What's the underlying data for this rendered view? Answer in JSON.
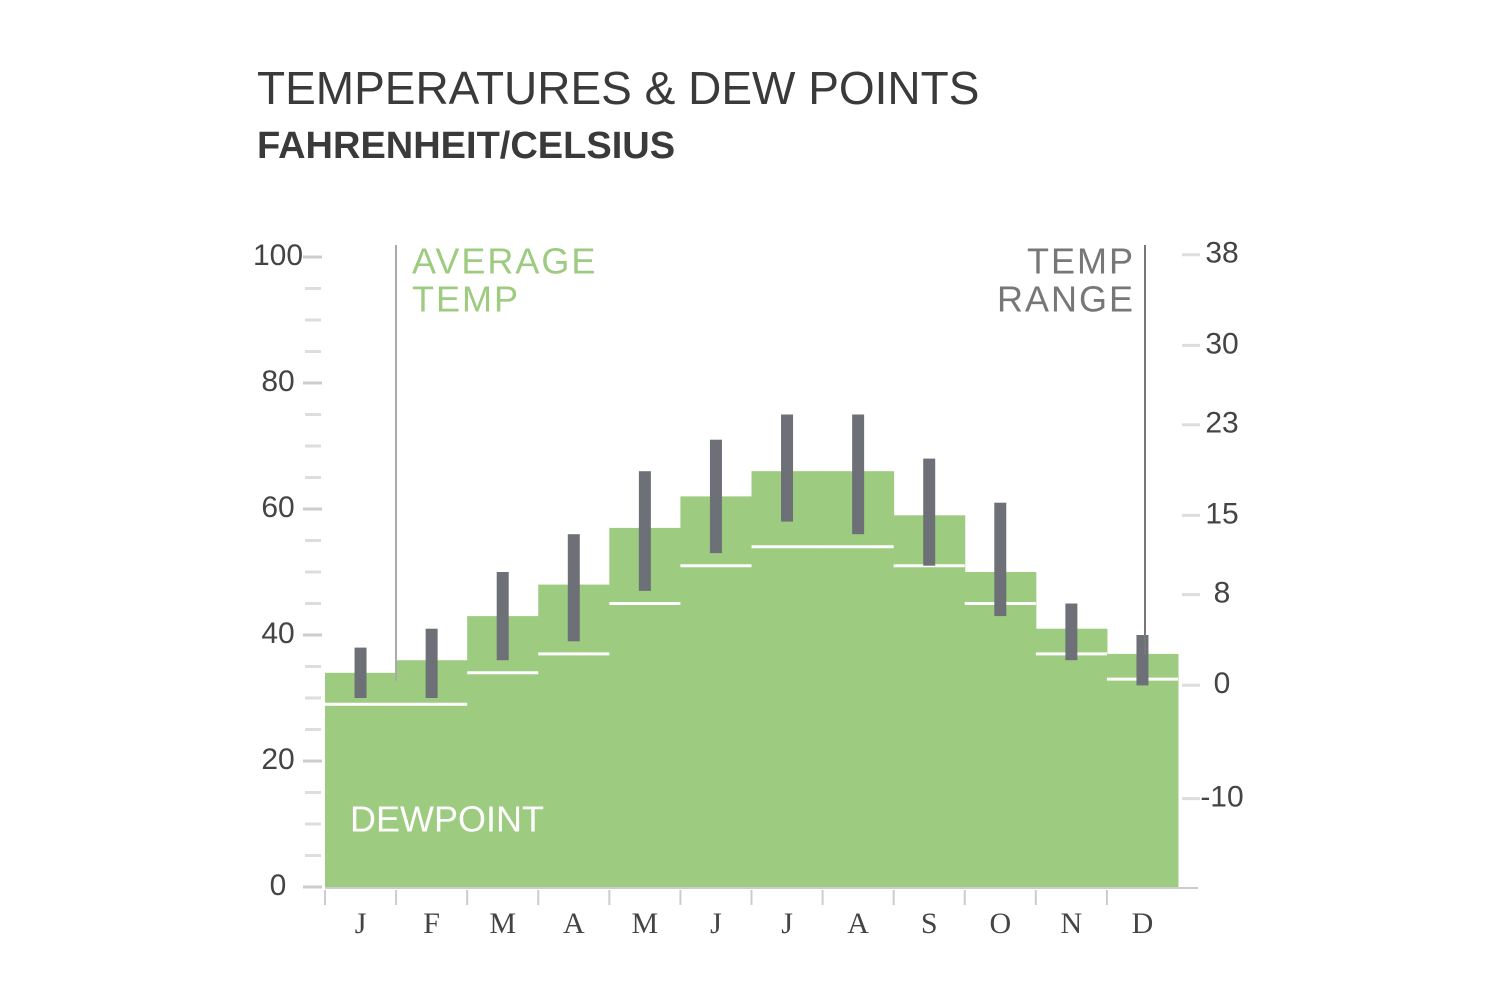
{
  "chart_data": {
    "type": "climate-steps",
    "title": "TEMPERATURES & DEW POINTS",
    "subtitle": "FAHRENHEIT/CELSIUS",
    "categories": [
      "J",
      "F",
      "M",
      "A",
      "M",
      "J",
      "J",
      "A",
      "S",
      "O",
      "N",
      "D"
    ],
    "ylim": [
      0,
      100
    ],
    "yticks": [
      0,
      20,
      40,
      60,
      80,
      100
    ],
    "yminorticks": [
      5,
      10,
      15,
      25,
      30,
      35,
      45,
      50,
      55,
      65,
      70,
      75,
      85,
      90,
      95
    ],
    "y2lim": [
      -17.8,
      37.8
    ],
    "y2ticks": [
      38,
      30,
      23,
      15,
      8,
      0,
      -10
    ],
    "avg_temp": {
      "label_lines": [
        "AVERAGE",
        "TEMP"
      ],
      "color": "#9dcb80",
      "values": [
        34,
        36,
        43,
        48,
        57,
        62,
        66,
        66,
        59,
        50,
        41,
        37
      ]
    },
    "dewpoint": {
      "label": "DEWPOINT",
      "color": "#ffffff",
      "values": [
        29,
        29,
        34,
        37,
        45,
        51,
        54,
        54,
        51,
        45,
        37,
        33
      ]
    },
    "temp_range": {
      "label_lines": [
        "TEMP",
        "RANGE"
      ],
      "color": "#6d7177",
      "high": [
        38,
        41,
        50,
        56,
        66,
        71,
        75,
        75,
        68,
        61,
        45,
        40
      ],
      "low": [
        30,
        30,
        36,
        39,
        47,
        53,
        58,
        56,
        51,
        43,
        36,
        32
      ]
    }
  }
}
